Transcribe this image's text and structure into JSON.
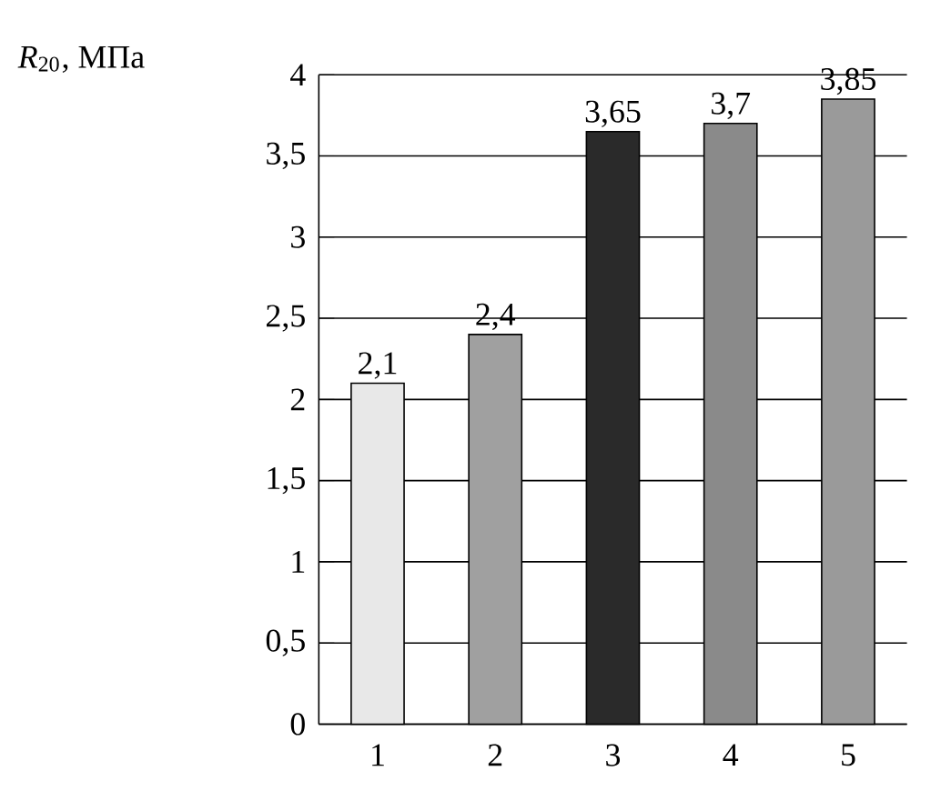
{
  "chart_data": {
    "type": "bar",
    "ylabel": "*R*$_{20}$, МПа",
    "categories": [
      "1",
      "2",
      "3",
      "4",
      "5"
    ],
    "values": [
      2.1,
      2.4,
      3.65,
      3.7,
      3.85
    ],
    "colors": [
      "#e8e8e8",
      "#a0a0a0",
      "#2a2a2a",
      "#8a8a8a",
      "#9a9a9a"
    ],
    "value_labels": [
      "2,1",
      "2,4",
      "3,65",
      "3,7",
      "3,85"
    ],
    "ylim": [
      0,
      4
    ],
    "yticks": [
      0,
      {
        "value": 0.5,
        "label": "0,5"
      },
      1,
      {
        "value": 1.5,
        "label": "1,5"
      },
      2,
      {
        "value": 2.5,
        "label": "2,5"
      },
      3,
      {
        "value": 3.5,
        "label": "3,5"
      },
      4
    ],
    "grid": "y"
  }
}
